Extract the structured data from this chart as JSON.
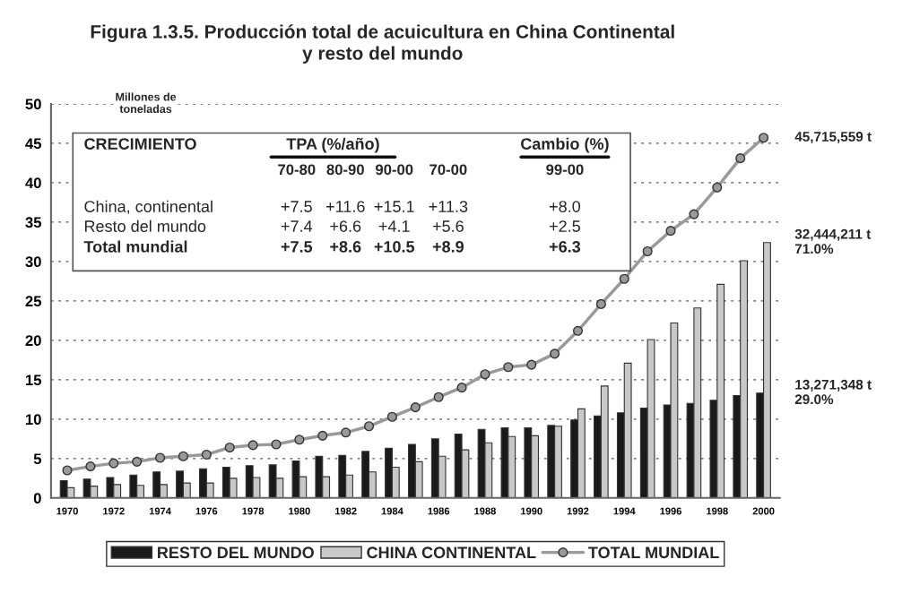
{
  "chart_data": {
    "type": "bar",
    "title": "Figura 1.3.5. Producción total de acuicultura en China Continental\ny resto del mundo",
    "ylabel": "Millones de\ntoneladas",
    "categories": [
      "1970",
      null,
      "1972",
      null,
      "1974",
      null,
      "1976",
      null,
      "1978",
      null,
      "1980",
      null,
      "1982",
      null,
      "1984",
      null,
      "1986",
      null,
      "1988",
      null,
      "1990",
      null,
      "1992",
      null,
      "1994",
      null,
      "1996",
      null,
      "1998",
      null,
      "2000"
    ],
    "series": [
      {
        "name": "RESTO DEL MUNDO",
        "color": "#1a1a1a",
        "values": [
          2.2,
          2.4,
          2.6,
          2.9,
          3.3,
          3.4,
          3.7,
          3.9,
          4.1,
          4.2,
          4.7,
          5.3,
          5.4,
          5.9,
          6.3,
          6.8,
          7.5,
          8.1,
          8.7,
          8.9,
          8.9,
          9.2,
          9.9,
          10.4,
          10.8,
          11.4,
          11.8,
          12.0,
          12.4,
          13.0,
          13.3
        ]
      },
      {
        "name": "CHINA CONTINENTAL",
        "color": "#c8c8c8",
        "values": [
          1.3,
          1.5,
          1.7,
          1.6,
          1.7,
          1.9,
          1.9,
          2.5,
          2.6,
          2.5,
          2.7,
          2.7,
          2.9,
          3.3,
          3.9,
          4.6,
          5.3,
          6.1,
          7.0,
          7.8,
          7.9,
          9.1,
          11.3,
          14.2,
          17.1,
          20.1,
          22.2,
          24.1,
          27.1,
          30.1,
          32.4
        ]
      },
      {
        "name": "TOTAL MUNDIAL",
        "type": "line",
        "color": "#999999",
        "marker": "circle",
        "values": [
          3.5,
          4.0,
          4.4,
          4.6,
          5.1,
          5.3,
          5.5,
          6.4,
          6.7,
          6.8,
          7.4,
          7.9,
          8.3,
          9.1,
          10.3,
          11.5,
          12.8,
          14.0,
          15.7,
          16.6,
          16.9,
          18.3,
          21.2,
          24.6,
          27.8,
          31.3,
          33.9,
          36.0,
          39.4,
          43.1,
          45.7
        ]
      }
    ],
    "ylim": [
      0,
      50
    ],
    "yticks": [
      0,
      5,
      10,
      15,
      20,
      25,
      30,
      35,
      40,
      45,
      50
    ],
    "grid": "y",
    "legend": "bottom",
    "annotations": [
      "CRECIMIENTO",
      "TPA (%/año)",
      "Cambio (%)",
      "70-80",
      "80-90",
      "90-00",
      "70-00",
      "99-00",
      "China, continental",
      "+7.5",
      "+11.6",
      "+15.1",
      "+11.3",
      "+8.0",
      "Resto del mundo",
      "+7.4",
      "+6.6",
      "+4.1",
      "+5.6",
      "+2.5",
      "Total mundial",
      "+7.5",
      "+8.6",
      "+10.5",
      "+8.9",
      "+6.3",
      {
        "text": "45,715,559 t",
        "x": "2000",
        "y": 45.7
      },
      {
        "text": "32,444,211 t\n71.0%",
        "x": "2000",
        "y": 32.4
      },
      {
        "text": "13,271,348 t\n29.0%",
        "x": "2000",
        "y": 13.3
      }
    ]
  }
}
